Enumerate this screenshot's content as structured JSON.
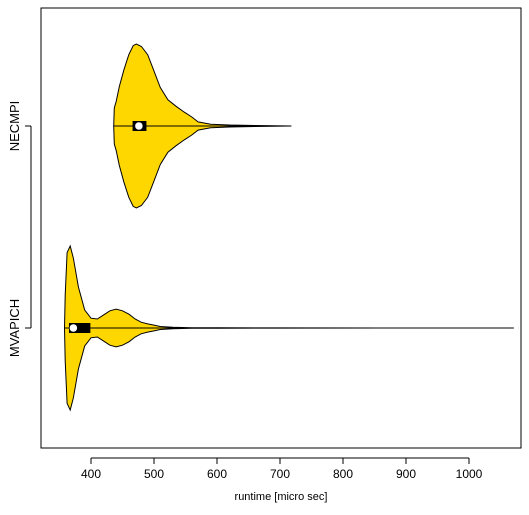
{
  "chart_data": {
    "type": "violin",
    "orientation": "horizontal",
    "title": "",
    "xlabel": "runtime [micro sec]",
    "ylabel": "",
    "xlim": [
      335,
      1078
    ],
    "xticks": [
      400,
      500,
      600,
      700,
      800,
      900,
      1000
    ],
    "categories": [
      "NECMPI",
      "MVAPICH"
    ],
    "fill_color": "#FFD700",
    "grid": false,
    "series": [
      {
        "name": "NECMPI",
        "min": 436,
        "q1": 466,
        "median": 476,
        "q3": 488,
        "whisker_low": 436,
        "whisker_high": 536,
        "max": 718,
        "density": [
          [
            436,
            0.0
          ],
          [
            437,
            0.22
          ],
          [
            440,
            0.3
          ],
          [
            445,
            0.48
          ],
          [
            452,
            0.68
          ],
          [
            460,
            0.87
          ],
          [
            467,
            0.98
          ],
          [
            472,
            1.0
          ],
          [
            480,
            0.97
          ],
          [
            490,
            0.87
          ],
          [
            500,
            0.67
          ],
          [
            510,
            0.47
          ],
          [
            522,
            0.32
          ],
          [
            535,
            0.24
          ],
          [
            548,
            0.17
          ],
          [
            560,
            0.11
          ],
          [
            570,
            0.05
          ],
          [
            590,
            0.022
          ],
          [
            620,
            0.012
          ],
          [
            660,
            0.006
          ],
          [
            718,
            0.0
          ]
        ]
      },
      {
        "name": "MVAPICH",
        "min": 358,
        "q1": 365,
        "median": 372,
        "q3": 399,
        "whisker_low": 358,
        "whisker_high": 459,
        "max": 1071,
        "density": [
          [
            358,
            0.0
          ],
          [
            359,
            0.4
          ],
          [
            362,
            0.92
          ],
          [
            367,
            1.0
          ],
          [
            372,
            0.85
          ],
          [
            380,
            0.5
          ],
          [
            390,
            0.22
          ],
          [
            400,
            0.12
          ],
          [
            410,
            0.11
          ],
          [
            420,
            0.16
          ],
          [
            430,
            0.21
          ],
          [
            440,
            0.23
          ],
          [
            450,
            0.21
          ],
          [
            460,
            0.17
          ],
          [
            470,
            0.11
          ],
          [
            480,
            0.07
          ],
          [
            490,
            0.05
          ],
          [
            500,
            0.035
          ],
          [
            510,
            0.018
          ],
          [
            530,
            0.008
          ],
          [
            560,
            0.004
          ],
          [
            600,
            0.002
          ],
          [
            700,
            0.001
          ],
          [
            1071,
            0.0
          ]
        ]
      }
    ]
  }
}
